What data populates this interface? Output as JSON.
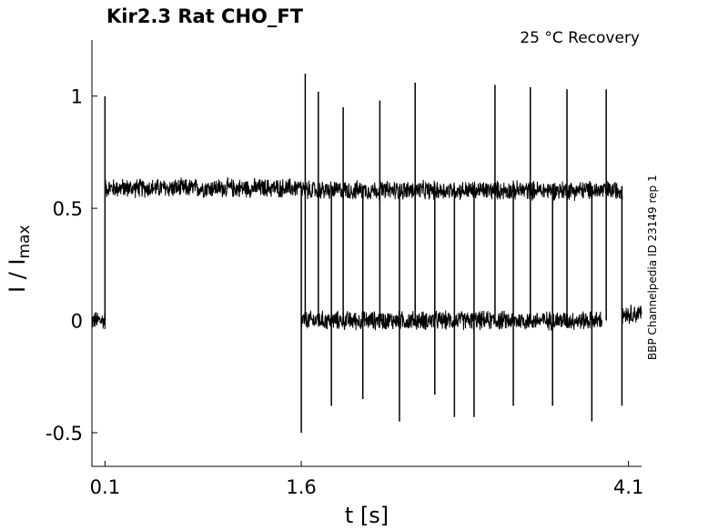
{
  "chart_data": {
    "type": "line",
    "title": "Kir2.3  Rat  CHO_FT",
    "condition_label": "25 °C  Recovery",
    "side_label": "BBP Channelpedia ID 23149 rep 1",
    "xlabel": "t [s]",
    "ylabel_main": "I / I",
    "ylabel_sub": "max",
    "x_ticks": [
      {
        "value": 0.1,
        "label": "0.1"
      },
      {
        "value": 1.6,
        "label": "1.6"
      },
      {
        "value": 4.1,
        "label": "4.1"
      }
    ],
    "y_ticks": [
      {
        "value": -0.5,
        "label": "-0.5"
      },
      {
        "value": 0,
        "label": "0"
      },
      {
        "value": 0.5,
        "label": "0.5"
      },
      {
        "value": 1,
        "label": "1"
      }
    ],
    "xlim": [
      0,
      4.2
    ],
    "ylim": [
      -0.65,
      1.25
    ],
    "grid": false,
    "line_color": "#000000",
    "series": [
      {
        "segments": [
          {
            "x": [
              0.0,
              0.1
            ],
            "level": 0.0
          },
          {
            "x": [
              0.1,
              1.6
            ],
            "level": 0.59
          },
          {
            "x": [
              1.6,
              3.9
            ],
            "level": 0.0
          },
          {
            "x": [
              1.6,
              4.05
            ],
            "level": 0.58
          },
          {
            "x": [
              4.05,
              4.2
            ],
            "level": 0.03
          }
        ],
        "spikes": [
          {
            "x": 0.1,
            "y": 1.0
          },
          {
            "x": 1.6,
            "y": -0.5
          },
          {
            "x": 1.63,
            "y": 1.1
          },
          {
            "x": 1.73,
            "y": 1.02
          },
          {
            "x": 1.83,
            "y": -0.38
          },
          {
            "x": 1.92,
            "y": 0.95
          },
          {
            "x": 2.07,
            "y": -0.35
          },
          {
            "x": 2.2,
            "y": 0.98
          },
          {
            "x": 2.35,
            "y": -0.45
          },
          {
            "x": 2.47,
            "y": 1.06
          },
          {
            "x": 2.62,
            "y": -0.33
          },
          {
            "x": 2.77,
            "y": -0.43
          },
          {
            "x": 2.92,
            "y": -0.43
          },
          {
            "x": 3.08,
            "y": 1.05
          },
          {
            "x": 3.22,
            "y": -0.38
          },
          {
            "x": 3.35,
            "y": 1.04
          },
          {
            "x": 3.52,
            "y": -0.38
          },
          {
            "x": 3.63,
            "y": 1.03
          },
          {
            "x": 3.82,
            "y": -0.45
          },
          {
            "x": 3.93,
            "y": 1.03
          },
          {
            "x": 4.05,
            "y": -0.38
          }
        ]
      }
    ]
  }
}
